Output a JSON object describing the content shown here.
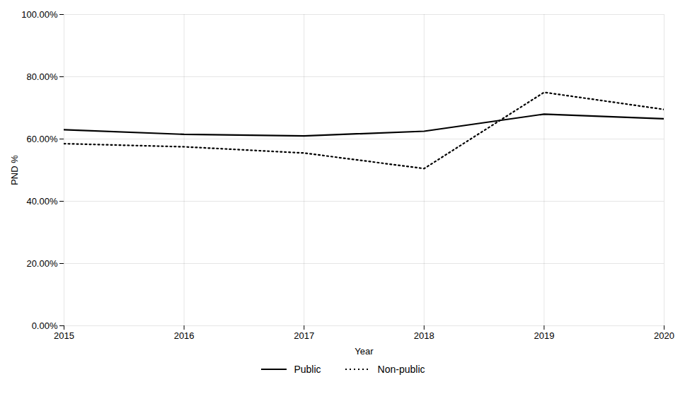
{
  "chart_data": {
    "type": "line",
    "xlabel": "Year",
    "ylabel": "PND %",
    "x": [
      2015,
      2016,
      2017,
      2018,
      2019,
      2020
    ],
    "series": [
      {
        "name": "Public",
        "color": "#000000",
        "line_style": "solid",
        "values": [
          0.63,
          0.615,
          0.61,
          0.625,
          0.68,
          0.665
        ]
      },
      {
        "name": "Non-public",
        "color": "#000000",
        "line_style": "dotted",
        "values": [
          0.585,
          0.575,
          0.555,
          0.505,
          0.75,
          0.695
        ]
      }
    ],
    "xlim": [
      2015,
      2020
    ],
    "xticks": [
      2015,
      2016,
      2017,
      2018,
      2019,
      2020
    ],
    "ylim": [
      0.0,
      1.0
    ],
    "yticks": [
      {
        "value": 0.0,
        "label": "0.00%"
      },
      {
        "value": 0.2,
        "label": "20.00%"
      },
      {
        "value": 0.4,
        "label": "40.00%"
      },
      {
        "value": 0.6,
        "label": "60.00%"
      },
      {
        "value": 0.8,
        "label": "80.00%"
      },
      {
        "value": 1.0,
        "label": "100.00%"
      }
    ],
    "grid": true,
    "legend": "bottom"
  }
}
